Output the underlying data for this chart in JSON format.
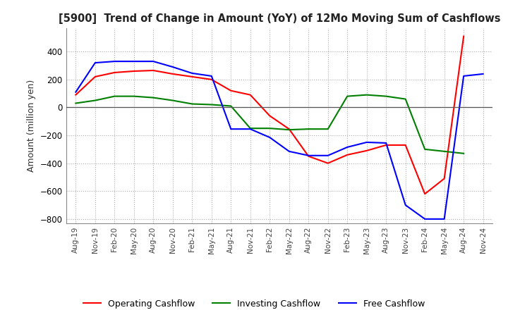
{
  "title": "[5900]  Trend of Change in Amount (YoY) of 12Mo Moving Sum of Cashflows",
  "ylabel": "Amount (million yen)",
  "ylim": [
    -830,
    570
  ],
  "yticks": [
    -800,
    -600,
    -400,
    -200,
    0,
    200,
    400
  ],
  "background_color": "#ffffff",
  "grid_color": "#aaaaaa",
  "labels": [
    "Aug-19",
    "Nov-19",
    "Feb-20",
    "May-20",
    "Aug-20",
    "Nov-20",
    "Feb-21",
    "May-21",
    "Aug-21",
    "Nov-21",
    "Feb-22",
    "May-22",
    "Aug-22",
    "Nov-22",
    "Feb-23",
    "May-23",
    "Aug-23",
    "Nov-23",
    "Feb-24",
    "May-24",
    "Aug-24",
    "Nov-24"
  ],
  "operating": [
    90,
    220,
    250,
    260,
    265,
    240,
    220,
    200,
    120,
    90,
    -60,
    -155,
    -350,
    -400,
    -340,
    -310,
    -270,
    -270,
    -620,
    -510,
    510,
    null
  ],
  "investing": [
    30,
    50,
    80,
    80,
    70,
    50,
    25,
    20,
    10,
    -150,
    -150,
    -160,
    -155,
    -155,
    80,
    90,
    80,
    60,
    -300,
    -315,
    -330,
    null
  ],
  "free": [
    110,
    320,
    330,
    330,
    330,
    290,
    245,
    225,
    -155,
    -155,
    -215,
    -315,
    -345,
    -345,
    -285,
    -250,
    -255,
    -700,
    -800,
    -800,
    225,
    240
  ],
  "line_colors": {
    "operating": "#ff0000",
    "investing": "#008000",
    "free": "#0000ff"
  },
  "legend_labels": {
    "operating": "Operating Cashflow",
    "investing": "Investing Cashflow",
    "free": "Free Cashflow"
  }
}
